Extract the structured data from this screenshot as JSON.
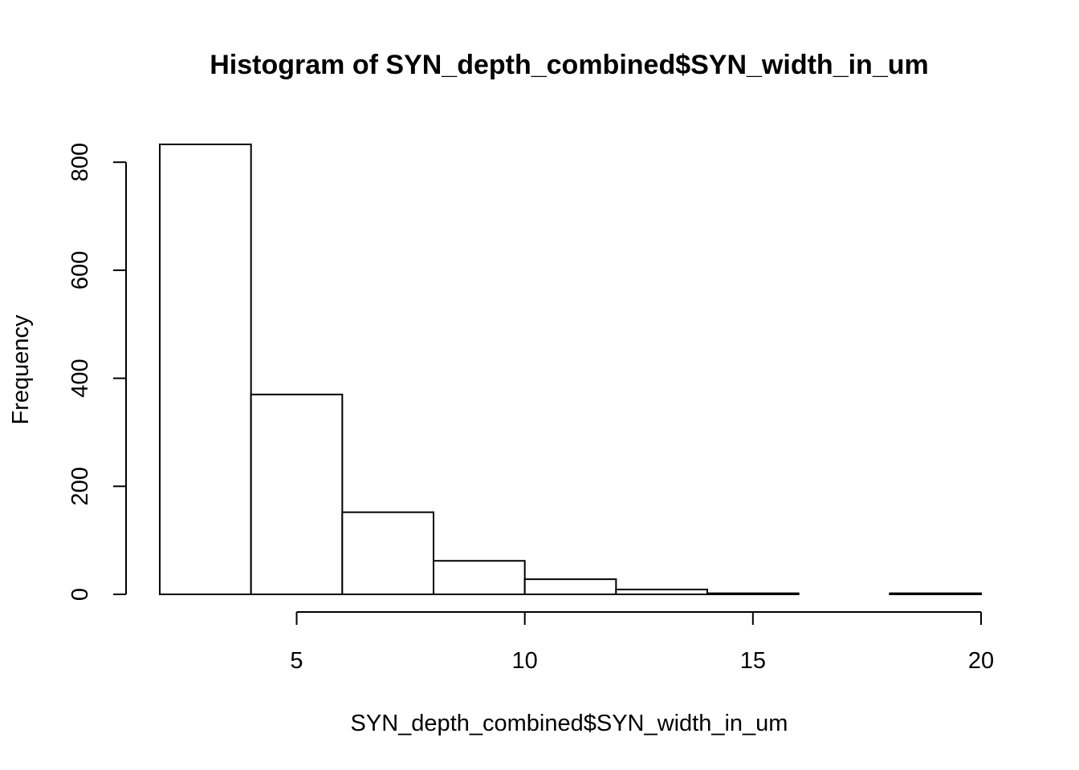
{
  "chart_data": {
    "type": "bar",
    "title": "Histogram of SYN_depth_combined$SYN_width_in_um",
    "xlabel": "SYN_depth_combined$SYN_width_in_um",
    "ylabel": "Frequency",
    "bins": [
      {
        "x0": 2,
        "x1": 4,
        "count": 833
      },
      {
        "x0": 4,
        "x1": 6,
        "count": 370
      },
      {
        "x0": 6,
        "x1": 8,
        "count": 152
      },
      {
        "x0": 8,
        "x1": 10,
        "count": 62
      },
      {
        "x0": 10,
        "x1": 12,
        "count": 28
      },
      {
        "x0": 12,
        "x1": 14,
        "count": 9
      },
      {
        "x0": 14,
        "x1": 16,
        "count": 2
      },
      {
        "x0": 16,
        "x1": 18,
        "count": 0
      },
      {
        "x0": 18,
        "x1": 20,
        "count": 2
      }
    ],
    "xticks": [
      5,
      10,
      15,
      20
    ],
    "yticks": [
      0,
      200,
      400,
      600,
      800
    ],
    "xlim": [
      2,
      20
    ],
    "ylim": [
      0,
      833
    ],
    "grid": false,
    "legend": "none",
    "colors": {
      "bar_fill": "#ffffff",
      "bar_stroke": "#000000",
      "axis": "#000000"
    }
  }
}
